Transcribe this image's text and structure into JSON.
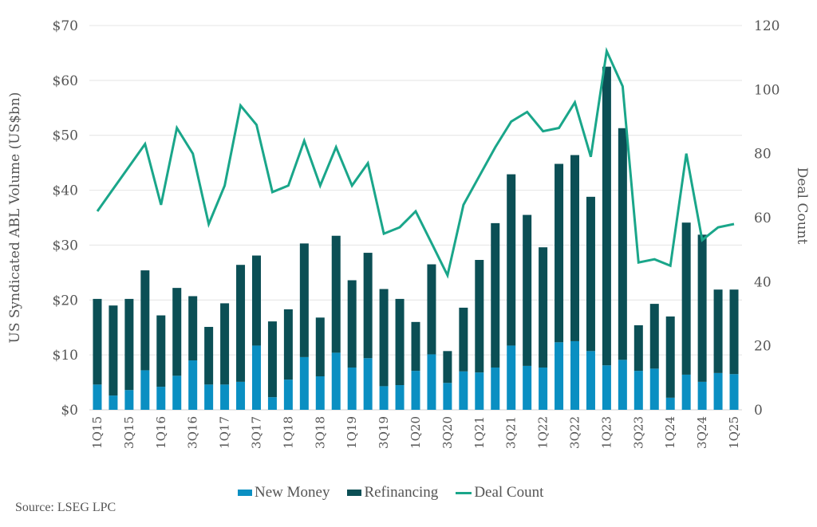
{
  "chart_data": {
    "type": "bar",
    "subtype": "stacked-bar-with-line",
    "title": "",
    "xlabel": "",
    "ylabel": "US Syndicated ABL Volume (US$bn)",
    "y2label": "Deal Count",
    "ylim": [
      0,
      70
    ],
    "y2lim": [
      0,
      120
    ],
    "yticks": [
      "$0",
      "$10",
      "$20",
      "$30",
      "$40",
      "$50",
      "$60",
      "$70"
    ],
    "y2ticks": [
      "0",
      "20",
      "40",
      "60",
      "80",
      "100",
      "120"
    ],
    "grid": true,
    "legend_position": "bottom",
    "categories": [
      "1Q15",
      "2Q15",
      "3Q15",
      "4Q15",
      "1Q16",
      "2Q16",
      "3Q16",
      "4Q16",
      "1Q17",
      "2Q17",
      "3Q17",
      "4Q17",
      "1Q18",
      "2Q18",
      "3Q18",
      "4Q18",
      "1Q19",
      "2Q19",
      "3Q19",
      "4Q19",
      "1Q20",
      "2Q20",
      "3Q20",
      "4Q20",
      "1Q21",
      "2Q21",
      "3Q21",
      "4Q21",
      "1Q22",
      "2Q22",
      "3Q22",
      "4Q22",
      "1Q23",
      "2Q23",
      "3Q23",
      "4Q23",
      "1Q24",
      "2Q24",
      "3Q24",
      "4Q24",
      "1Q25"
    ],
    "xtick_labels": [
      "1Q15",
      "3Q15",
      "1Q16",
      "3Q16",
      "1Q17",
      "3Q17",
      "1Q18",
      "3Q18",
      "1Q19",
      "3Q19",
      "1Q20",
      "3Q20",
      "1Q21",
      "3Q21",
      "1Q22",
      "3Q22",
      "1Q23",
      "3Q23",
      "1Q24",
      "3Q24",
      "1Q25"
    ],
    "series": [
      {
        "name": "New Money",
        "type": "bar",
        "axis": "left",
        "color": "#0a8fc2",
        "values": [
          4.6,
          2.6,
          3.6,
          7.2,
          4.2,
          6.2,
          9.0,
          4.6,
          4.6,
          5.1,
          11.7,
          2.3,
          5.5,
          9.6,
          6.1,
          10.4,
          7.7,
          9.4,
          4.3,
          4.5,
          7.1,
          10.1,
          4.9,
          7.0,
          6.8,
          7.7,
          11.7,
          8.0,
          7.7,
          12.3,
          12.5,
          10.7,
          8.1,
          9.1,
          7.1,
          7.5,
          2.2,
          6.4,
          5.1,
          6.7,
          6.5
        ]
      },
      {
        "name": "Refinancing",
        "type": "bar",
        "axis": "left",
        "color": "#0b4f55",
        "values": [
          15.6,
          16.4,
          16.6,
          18.2,
          13.0,
          16.0,
          11.7,
          10.5,
          14.8,
          21.3,
          16.4,
          13.8,
          12.8,
          20.7,
          10.7,
          21.3,
          15.9,
          19.2,
          17.7,
          15.7,
          8.9,
          16.4,
          5.8,
          11.6,
          20.5,
          26.3,
          31.2,
          27.5,
          21.9,
          32.5,
          33.9,
          28.1,
          54.4,
          42.2,
          8.3,
          11.8,
          14.8,
          27.7,
          26.8,
          15.2,
          15.4
        ]
      },
      {
        "name": "Deal Count",
        "type": "line",
        "axis": "right",
        "color": "#1aa68a",
        "values": [
          62,
          69,
          76,
          83,
          64,
          88,
          80,
          58,
          70,
          95,
          89,
          68,
          70,
          84,
          70,
          82,
          70,
          77,
          55,
          57,
          62,
          52,
          42,
          64,
          73,
          82,
          90,
          93,
          87,
          88,
          96,
          79,
          112,
          101,
          46,
          47,
          45,
          80,
          53,
          57,
          58
        ]
      }
    ]
  },
  "legend": {
    "new_money": "New Money",
    "refinancing": "Refinancing",
    "deal_count": "Deal Count"
  },
  "source": "Source: LSEG LPC"
}
